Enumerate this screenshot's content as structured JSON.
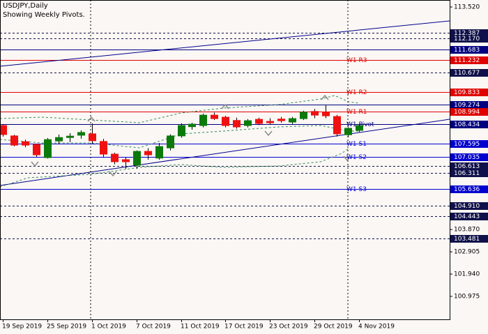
{
  "chart_data": {
    "type": "candlestick",
    "title": "USDJPY,Daily",
    "subtitle": "Showing Weekly Pivots.",
    "categories": [
      "19 Sep 2019",
      null,
      null,
      null,
      "25 Sep 2019",
      null,
      null,
      null,
      "1 Oct 2019",
      null,
      null,
      null,
      "7 Oct 2019",
      null,
      null,
      null,
      "11 Oct 2019",
      null,
      null,
      null,
      "17 Oct 2019",
      null,
      null,
      null,
      "23 Oct 2019",
      null,
      null,
      null,
      "29 Oct 2019",
      null,
      null,
      null,
      "4 Nov 2019"
    ],
    "open": [
      108.38,
      107.93,
      107.68,
      107.56,
      106.99,
      107.71,
      107.86,
      107.96,
      108.02,
      107.69,
      107.14,
      106.9,
      106.66,
      107.26,
      106.97,
      107.41,
      107.93,
      108.33,
      108.38,
      108.83,
      108.74,
      108.6,
      108.38,
      108.65,
      108.56,
      108.66,
      108.53,
      108.68,
      108.99,
      108.96,
      108.77,
      107.98,
      108.17
    ],
    "high": [
      108.42,
      107.98,
      107.77,
      107.6,
      107.84,
      107.99,
      108.05,
      108.17,
      108.47,
      107.8,
      107.2,
      107.0,
      107.3,
      107.4,
      107.62,
      108.0,
      108.48,
      108.5,
      108.9,
      108.94,
      108.8,
      108.72,
      108.66,
      108.72,
      108.7,
      108.75,
      108.75,
      109.02,
      109.1,
      109.28,
      108.84,
      108.31,
      108.45
    ],
    "low": [
      107.9,
      107.48,
      107.44,
      107.02,
      106.95,
      107.56,
      107.66,
      107.81,
      107.6,
      107.0,
      106.7,
      106.5,
      106.5,
      106.9,
      106.9,
      107.3,
      107.85,
      108.2,
      108.3,
      108.62,
      108.3,
      108.25,
      108.3,
      108.4,
      108.42,
      108.5,
      108.45,
      108.62,
      108.7,
      108.7,
      107.9,
      107.88,
      108.1
    ],
    "close": [
      107.99,
      107.53,
      107.53,
      107.11,
      107.77,
      107.86,
      107.92,
      108.08,
      107.72,
      107.14,
      106.81,
      106.81,
      107.26,
      107.11,
      107.47,
      107.93,
      108.38,
      108.44,
      108.83,
      108.68,
      108.38,
      108.32,
      108.59,
      108.47,
      108.5,
      108.59,
      108.68,
      108.96,
      108.83,
      108.8,
      108.02,
      108.26,
      108.38
    ],
    "up_color": "#0b7a0b",
    "down_color": "#f01010",
    "ylim": [
      99.977,
      113.822
    ],
    "yticks": [
      {
        "value": 113.52,
        "label": "113.520"
      },
      {
        "value": 103.87,
        "label": "103.870"
      },
      {
        "value": 102.905,
        "label": "102.905"
      },
      {
        "value": 101.94,
        "label": "101.940"
      },
      {
        "value": 100.975,
        "label": "100.975"
      }
    ],
    "levels": [
      {
        "value": 112.387,
        "label": "112.387",
        "color": "#10104a",
        "style": "dashed"
      },
      {
        "value": 112.17,
        "label": "112.170",
        "color": "#10104a",
        "style": "dashed"
      },
      {
        "value": 111.683,
        "label": "111.683",
        "color": "#000080",
        "style": "solid"
      },
      {
        "value": 111.232,
        "label": "111.232",
        "name": "W1 R3",
        "color": "#e00000",
        "style": "solid"
      },
      {
        "value": 110.677,
        "label": "110.677",
        "color": "#10104a",
        "style": "dashed"
      },
      {
        "value": 109.833,
        "label": "109.833",
        "name": "W1 R2",
        "color": "#e00000",
        "style": "solid"
      },
      {
        "value": 109.274,
        "label": "109.274",
        "color": "#000080",
        "style": "solid"
      },
      {
        "value": 108.994,
        "label": "108.994",
        "name": "W1 R1",
        "color": "#e00000",
        "style": "solid"
      },
      {
        "value": 108.434,
        "label": "108.434",
        "name": "W1 Pivot",
        "color": "#000080",
        "style": "solid"
      },
      {
        "value": 107.595,
        "label": "107.595",
        "name": "W1 S1",
        "color": "#0000d0",
        "style": "solid"
      },
      {
        "value": 107.035,
        "label": "107.035",
        "name": "W1 S2",
        "color": "#0000d0",
        "style": "solid"
      },
      {
        "value": 106.613,
        "label": "106.613",
        "color": "#10104a",
        "style": "dashed"
      },
      {
        "value": 106.311,
        "label": "106.311",
        "color": "#10104a",
        "style": "dashed"
      },
      {
        "value": 105.636,
        "label": "105.636",
        "name": "W1 S3",
        "color": "#0000d0",
        "style": "solid"
      },
      {
        "value": 104.91,
        "label": "104.910",
        "color": "#10104a",
        "style": "dashed"
      },
      {
        "value": 104.443,
        "label": "104.443",
        "color": "#10104a",
        "style": "dashed"
      },
      {
        "value": 103.481,
        "label": "103.481",
        "color": "#10104a",
        "style": "dashed"
      }
    ]
  }
}
